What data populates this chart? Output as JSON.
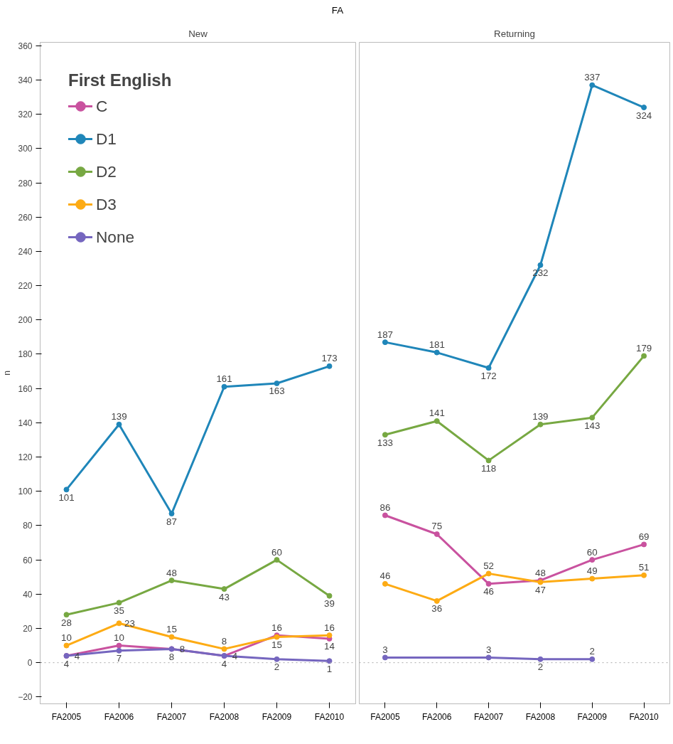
{
  "chart_data": [
    {
      "type": "line",
      "title": "FA",
      "subtitle": "New",
      "ylabel": "n",
      "legend_title": "First English",
      "categories": [
        "FA2005",
        "FA2006",
        "FA2007",
        "FA2008",
        "FA2009",
        "FA2010"
      ],
      "ylim": [
        -24,
        362
      ],
      "yticks": [
        -20,
        0,
        20,
        40,
        60,
        80,
        100,
        120,
        140,
        160,
        180,
        200,
        220,
        240,
        260,
        280,
        300,
        320,
        340,
        360
      ],
      "grid": false,
      "legend": "top left",
      "marker": "circle",
      "line_style": "solid",
      "data_labels": true,
      "ref_lines": [
        {
          "axis": "y",
          "value": 0,
          "label": null,
          "color": "#aaaaaa",
          "line_style": "dotted"
        }
      ],
      "series": [
        {
          "name": "C",
          "color": "#c9529f",
          "values": [
            4,
            10,
            8,
            4,
            16,
            14
          ]
        },
        {
          "name": "D1",
          "color": "#1f86b9",
          "values": [
            101,
            139,
            87,
            161,
            163,
            173
          ]
        },
        {
          "name": "D2",
          "color": "#77a842",
          "values": [
            28,
            35,
            48,
            43,
            60,
            39
          ]
        },
        {
          "name": "D3",
          "color": "#fdab14",
          "values": [
            10,
            23,
            15,
            8,
            15,
            16
          ]
        },
        {
          "name": "None",
          "color": "#7566bf",
          "values": [
            4,
            7,
            8,
            4,
            2,
            1
          ]
        }
      ]
    },
    {
      "type": "line",
      "subtitle": "Returning",
      "categories": [
        "FA2005",
        "FA2006",
        "FA2007",
        "FA2008",
        "FA2009",
        "FA2010"
      ],
      "ylim": [
        -24,
        362
      ],
      "yticks": [
        -20,
        0,
        20,
        40,
        60,
        80,
        100,
        120,
        140,
        160,
        180,
        200,
        220,
        240,
        260,
        280,
        300,
        320,
        340,
        360
      ],
      "tick_labels": "x",
      "grid": false,
      "marker": "circle",
      "line_style": "solid",
      "data_labels": true,
      "ref_lines": [
        {
          "axis": "y",
          "value": 0,
          "label": null,
          "color": "#aaaaaa",
          "line_style": "dotted"
        }
      ],
      "series": [
        {
          "color": "#c9529f",
          "values": [
            86,
            75,
            46,
            48,
            60,
            69
          ]
        },
        {
          "color": "#1f86b9",
          "values": [
            187,
            181,
            172,
            232,
            337,
            324
          ]
        },
        {
          "color": "#77a842",
          "values": [
            133,
            141,
            118,
            139,
            143,
            179
          ]
        },
        {
          "color": "#fdab14",
          "values": [
            46,
            36,
            52,
            47,
            49,
            51
          ]
        },
        {
          "color": "#7566bf",
          "values": [
            3,
            null,
            3,
            2,
            2,
            null
          ]
        }
      ]
    }
  ]
}
